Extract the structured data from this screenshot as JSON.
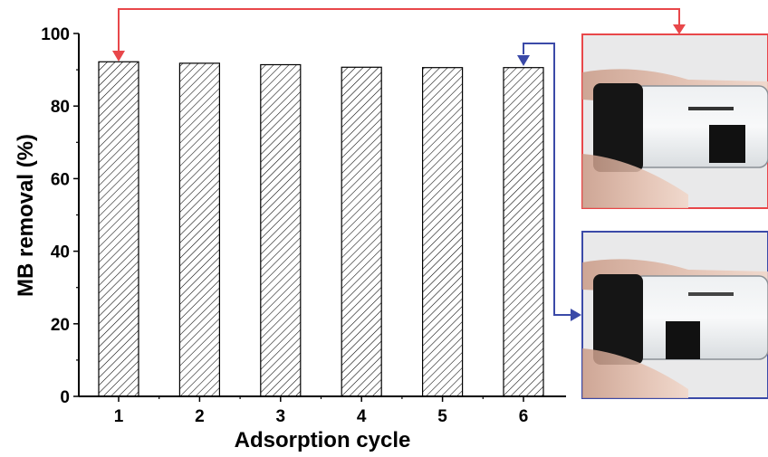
{
  "chart_data": {
    "type": "bar",
    "categories": [
      "1",
      "2",
      "3",
      "4",
      "5",
      "6"
    ],
    "values": [
      92.2,
      91.8,
      91.4,
      90.7,
      90.6,
      90.6
    ],
    "xlabel": "Adsorption cycle",
    "ylabel": "MB removal (%)",
    "ylim": [
      0,
      100
    ],
    "yticks": [
      0,
      20,
      40,
      60,
      80,
      100
    ],
    "bar_fill": "hatched",
    "grid": false,
    "legend": "none"
  },
  "photos": [
    {
      "name": "photo-before",
      "frame_color": "#e8474a",
      "linked_cycle": "1"
    },
    {
      "name": "photo-after",
      "frame_color": "#3b4aa8",
      "linked_cycle": "6"
    }
  ],
  "colors": {
    "red_arrow": "#e8474a",
    "blue_arrow": "#3b4aa8"
  }
}
